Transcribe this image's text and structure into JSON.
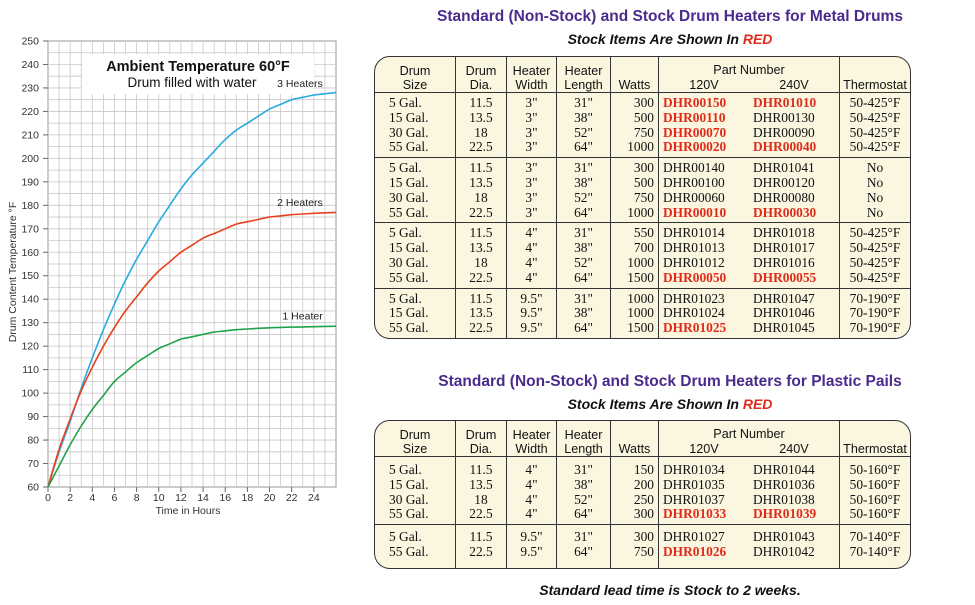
{
  "chart_data": {
    "type": "line",
    "title": "Ambient Temperature 60°F",
    "subtitle": "Drum filled with water",
    "xlabel": "Time in Hours",
    "ylabel": "Drum Content Temperature °F",
    "xlim": [
      0,
      26
    ],
    "ylim": [
      60,
      250
    ],
    "x_ticks": [
      "0",
      "2",
      "4",
      "6",
      "8",
      "10",
      "12",
      "14",
      "16",
      "18",
      "20",
      "22",
      "24"
    ],
    "y_ticks": [
      "60",
      "70",
      "80",
      "90",
      "100",
      "110",
      "120",
      "130",
      "140",
      "150",
      "160",
      "170",
      "180",
      "190",
      "200",
      "210",
      "220",
      "230",
      "240",
      "250"
    ],
    "grid": true,
    "series": [
      {
        "name": "3 Heaters",
        "color": "#29aae1",
        "x": [
          0,
          1,
          2,
          3,
          4,
          5,
          6,
          7,
          8,
          9,
          10,
          11,
          12,
          13,
          14,
          15,
          16,
          17,
          18,
          19,
          20,
          21,
          22,
          23,
          24,
          25,
          26
        ],
        "y": [
          60,
          75,
          88,
          102,
          115,
          127,
          138,
          148,
          157,
          165,
          173,
          180,
          187,
          193,
          198,
          203,
          208,
          212,
          215,
          218,
          221,
          223,
          225,
          226,
          227,
          227.5,
          228
        ]
      },
      {
        "name": "2 Heaters",
        "color": "#e8401c",
        "x": [
          0,
          1,
          2,
          3,
          4,
          5,
          6,
          7,
          8,
          9,
          10,
          11,
          12,
          13,
          14,
          15,
          16,
          17,
          18,
          19,
          20,
          21,
          22,
          23,
          24,
          25,
          26
        ],
        "y": [
          60,
          76,
          89,
          101,
          111,
          120,
          128,
          135,
          141,
          147,
          152,
          156,
          160,
          163,
          166,
          168,
          170,
          172,
          173,
          174,
          175,
          175.5,
          176,
          176.3,
          176.6,
          176.8,
          177
        ]
      },
      {
        "name": "1 Heater",
        "color": "#21a34a",
        "x": [
          0,
          1,
          2,
          3,
          4,
          5,
          6,
          7,
          8,
          9,
          10,
          11,
          12,
          13,
          14,
          15,
          16,
          17,
          18,
          19,
          20,
          21,
          22,
          23,
          24,
          25,
          26
        ],
        "y": [
          60,
          69,
          78,
          86,
          93,
          99,
          105,
          109,
          113,
          116,
          119,
          121,
          123,
          124,
          125,
          126,
          126.5,
          127,
          127.3,
          127.6,
          127.8,
          128,
          128.1,
          128.2,
          128.3,
          128.4,
          128.5
        ]
      }
    ]
  },
  "tables": {
    "metal": {
      "title": "Standard (Non-Stock) and Stock Drum Heaters for Metal Drums",
      "subtitle": "Stock Items Are Shown In",
      "subtitle_red": "RED"
    },
    "plastic": {
      "title": "Standard (Non-Stock) and Stock Drum Heaters for Plastic Pails",
      "subtitle": "Stock Items Are Shown In",
      "subtitle_red": "RED"
    },
    "headers": {
      "size": [
        "Drum",
        "Size"
      ],
      "dia": [
        "Drum",
        "Dia."
      ],
      "width": [
        "Heater",
        "Width"
      ],
      "length": [
        "Heater",
        "Length"
      ],
      "watts": "Watts",
      "part_number": "Part Number",
      "v120": "120V",
      "v240": "240V",
      "thermostat": "Thermostat"
    }
  },
  "footer": "Standard lead time is Stock to 2 weeks.",
  "colors": {
    "title": "#4a2b8c",
    "stock_red": "#e12b1a",
    "table_bg": "#fbf6e0"
  }
}
